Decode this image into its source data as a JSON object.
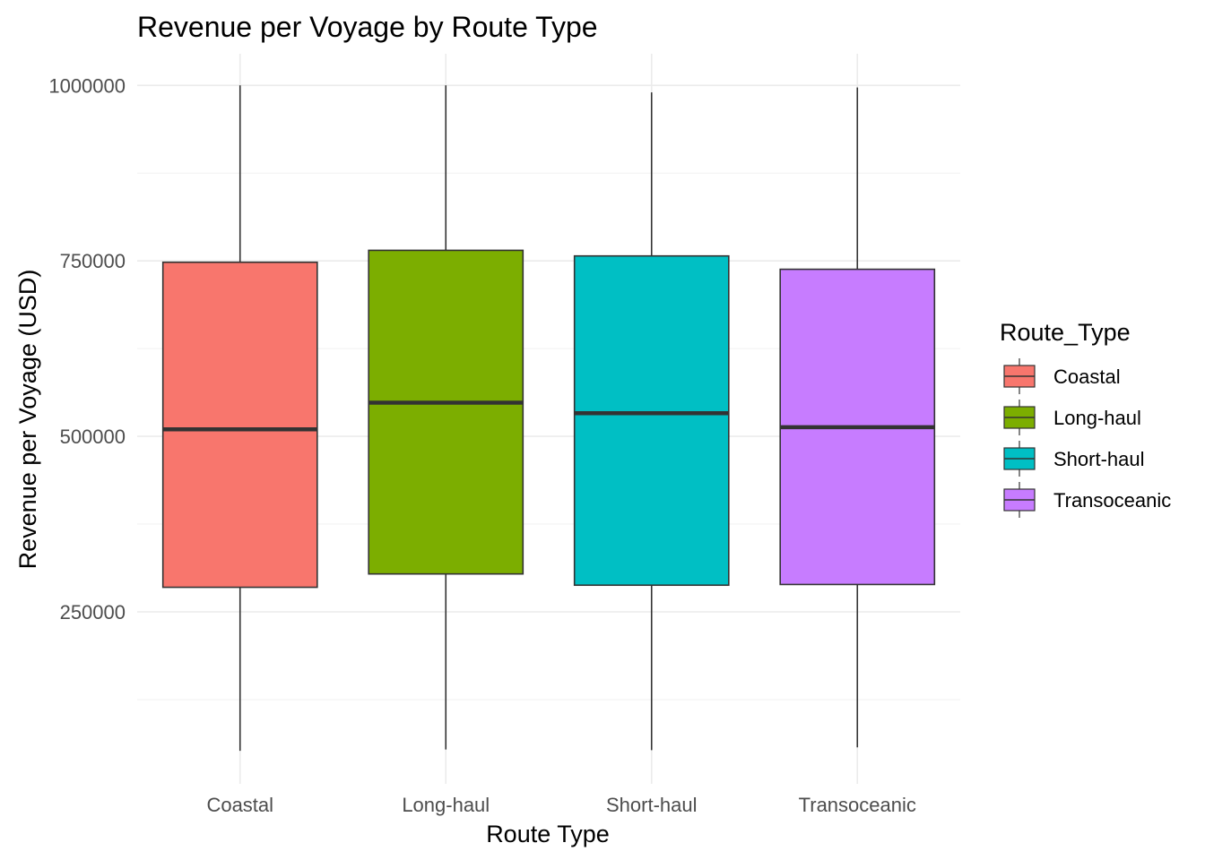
{
  "chart_data": {
    "type": "boxplot",
    "title": "Revenue per Voyage by Route Type",
    "xlabel": "Route Type",
    "ylabel": "Revenue per Voyage (USD)",
    "categories": [
      "Coastal",
      "Long-haul",
      "Short-haul",
      "Transoceanic"
    ],
    "ylim": [
      5000,
      1045000
    ],
    "yticks": [
      250000,
      500000,
      750000,
      1000000
    ],
    "ytick_labels": [
      "250000",
      "500000",
      "750000",
      "1000000"
    ],
    "grid": true,
    "legend": {
      "title": "Route_Type",
      "position": "right",
      "entries": [
        "Coastal",
        "Long-haul",
        "Short-haul",
        "Transoceanic"
      ]
    },
    "colors": [
      "#F8766D",
      "#7CAE00",
      "#00BFC4",
      "#C77CFF"
    ],
    "boxes": [
      {
        "name": "Coastal",
        "min": 52000,
        "q1": 285000,
        "median": 510000,
        "q3": 748000,
        "max": 1000000
      },
      {
        "name": "Long-haul",
        "min": 54000,
        "q1": 304000,
        "median": 548000,
        "q3": 765000,
        "max": 1000000
      },
      {
        "name": "Short-haul",
        "min": 53000,
        "q1": 288000,
        "median": 533000,
        "q3": 757000,
        "max": 990000
      },
      {
        "name": "Transoceanic",
        "min": 57000,
        "q1": 289000,
        "median": 513000,
        "q3": 738000,
        "max": 997000
      }
    ]
  }
}
